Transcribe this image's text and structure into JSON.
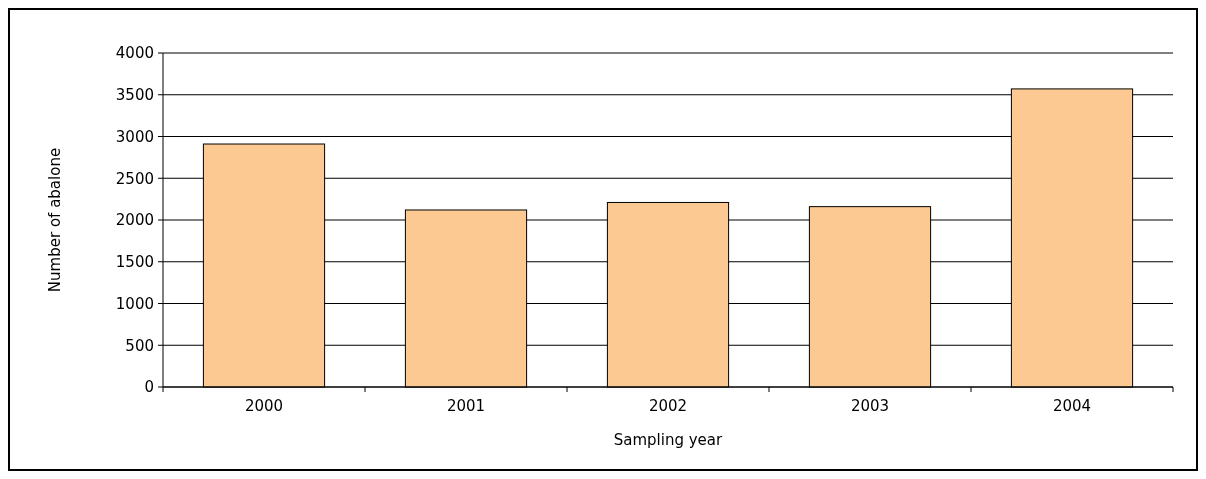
{
  "chart_data": {
    "type": "bar",
    "xlabel": "Sampling year",
    "ylabel": "Number of abalone",
    "categories": [
      "2000",
      "2001",
      "2002",
      "2003",
      "2004"
    ],
    "values": [
      2910,
      2120,
      2210,
      2160,
      3570
    ],
    "color": "#fcc993",
    "ylim": [
      0,
      4000
    ],
    "yticks": [
      0,
      500,
      1000,
      1500,
      2000,
      2500,
      3000,
      3500,
      4000
    ],
    "grid": "y"
  }
}
